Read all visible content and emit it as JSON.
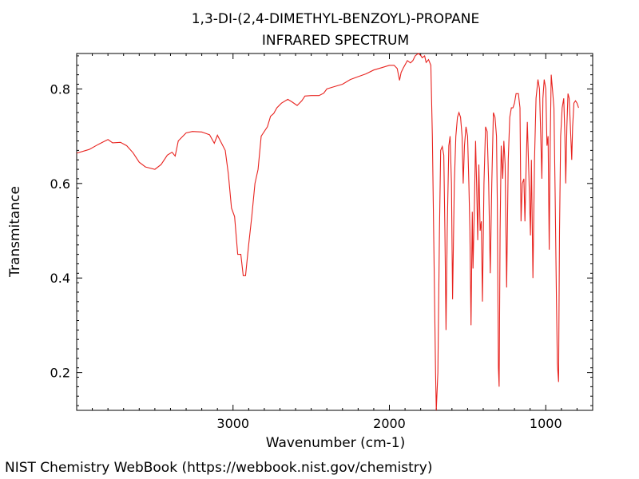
{
  "chart_data": {
    "type": "line",
    "title": "1,3-DI-(2,4-DIMETHYL-BENZOYL)-PROPANE",
    "subtitle": "INFRARED SPECTRUM",
    "xlabel": "Wavenumber (cm-1)",
    "ylabel": "Transmitance",
    "xlim": [
      4000,
      700
    ],
    "ylim": [
      0.12,
      0.875
    ],
    "x_reversed": true,
    "grid": false,
    "legend": "none",
    "x_ticks": [
      3000,
      2000,
      1000
    ],
    "y_ticks": [
      0.2,
      0.4,
      0.6,
      0.8
    ],
    "line_color": "#e8231f",
    "series": [
      {
        "points": [
          [
            4000,
            0.664
          ],
          [
            3920,
            0.672
          ],
          [
            3860,
            0.683
          ],
          [
            3800,
            0.693
          ],
          [
            3770,
            0.686
          ],
          [
            3720,
            0.687
          ],
          [
            3680,
            0.68
          ],
          [
            3640,
            0.665
          ],
          [
            3600,
            0.645
          ],
          [
            3560,
            0.635
          ],
          [
            3500,
            0.63
          ],
          [
            3460,
            0.64
          ],
          [
            3420,
            0.66
          ],
          [
            3390,
            0.666
          ],
          [
            3370,
            0.658
          ],
          [
            3350,
            0.69
          ],
          [
            3300,
            0.707
          ],
          [
            3260,
            0.71
          ],
          [
            3200,
            0.709
          ],
          [
            3150,
            0.703
          ],
          [
            3120,
            0.685
          ],
          [
            3100,
            0.702
          ],
          [
            3075,
            0.686
          ],
          [
            3050,
            0.67
          ],
          [
            3030,
            0.62
          ],
          [
            3010,
            0.548
          ],
          [
            2990,
            0.53
          ],
          [
            2970,
            0.45
          ],
          [
            2950,
            0.45
          ],
          [
            2935,
            0.405
          ],
          [
            2920,
            0.405
          ],
          [
            2900,
            0.47
          ],
          [
            2880,
            0.53
          ],
          [
            2860,
            0.6
          ],
          [
            2840,
            0.63
          ],
          [
            2820,
            0.7
          ],
          [
            2780,
            0.72
          ],
          [
            2760,
            0.742
          ],
          [
            2740,
            0.748
          ],
          [
            2720,
            0.76
          ],
          [
            2690,
            0.77
          ],
          [
            2650,
            0.778
          ],
          [
            2620,
            0.772
          ],
          [
            2590,
            0.765
          ],
          [
            2560,
            0.775
          ],
          [
            2540,
            0.785
          ],
          [
            2500,
            0.786
          ],
          [
            2450,
            0.786
          ],
          [
            2420,
            0.791
          ],
          [
            2400,
            0.8
          ],
          [
            2350,
            0.805
          ],
          [
            2300,
            0.81
          ],
          [
            2250,
            0.82
          ],
          [
            2200,
            0.826
          ],
          [
            2150,
            0.832
          ],
          [
            2100,
            0.84
          ],
          [
            2050,
            0.845
          ],
          [
            2000,
            0.85
          ],
          [
            1970,
            0.85
          ],
          [
            1950,
            0.843
          ],
          [
            1935,
            0.818
          ],
          [
            1925,
            0.835
          ],
          [
            1910,
            0.845
          ],
          [
            1885,
            0.86
          ],
          [
            1865,
            0.855
          ],
          [
            1850,
            0.86
          ],
          [
            1835,
            0.87
          ],
          [
            1815,
            0.875
          ],
          [
            1800,
            0.871
          ],
          [
            1790,
            0.866
          ],
          [
            1775,
            0.87
          ],
          [
            1765,
            0.856
          ],
          [
            1750,
            0.862
          ],
          [
            1735,
            0.85
          ],
          [
            1725,
            0.7
          ],
          [
            1715,
            0.45
          ],
          [
            1705,
            0.2
          ],
          [
            1700,
            0.1
          ],
          [
            1690,
            0.2
          ],
          [
            1680,
            0.5
          ],
          [
            1672,
            0.67
          ],
          [
            1662,
            0.678
          ],
          [
            1652,
            0.66
          ],
          [
            1645,
            0.5
          ],
          [
            1638,
            0.29
          ],
          [
            1630,
            0.5
          ],
          [
            1620,
            0.68
          ],
          [
            1612,
            0.7
          ],
          [
            1603,
            0.6
          ],
          [
            1596,
            0.355
          ],
          [
            1585,
            0.6
          ],
          [
            1575,
            0.7
          ],
          [
            1565,
            0.74
          ],
          [
            1555,
            0.75
          ],
          [
            1545,
            0.74
          ],
          [
            1535,
            0.7
          ],
          [
            1528,
            0.6
          ],
          [
            1520,
            0.68
          ],
          [
            1510,
            0.72
          ],
          [
            1500,
            0.7
          ],
          [
            1492,
            0.6
          ],
          [
            1485,
            0.5
          ],
          [
            1478,
            0.3
          ],
          [
            1470,
            0.54
          ],
          [
            1465,
            0.42
          ],
          [
            1456,
            0.56
          ],
          [
            1449,
            0.69
          ],
          [
            1442,
            0.6
          ],
          [
            1435,
            0.48
          ],
          [
            1428,
            0.64
          ],
          [
            1420,
            0.5
          ],
          [
            1412,
            0.52
          ],
          [
            1405,
            0.35
          ],
          [
            1395,
            0.6
          ],
          [
            1385,
            0.72
          ],
          [
            1375,
            0.71
          ],
          [
            1365,
            0.6
          ],
          [
            1355,
            0.41
          ],
          [
            1345,
            0.6
          ],
          [
            1335,
            0.75
          ],
          [
            1325,
            0.74
          ],
          [
            1315,
            0.7
          ],
          [
            1310,
            0.56
          ],
          [
            1303,
            0.21
          ],
          [
            1298,
            0.17
          ],
          [
            1292,
            0.5
          ],
          [
            1285,
            0.68
          ],
          [
            1275,
            0.61
          ],
          [
            1268,
            0.69
          ],
          [
            1260,
            0.64
          ],
          [
            1250,
            0.38
          ],
          [
            1240,
            0.65
          ],
          [
            1230,
            0.74
          ],
          [
            1220,
            0.76
          ],
          [
            1210,
            0.76
          ],
          [
            1200,
            0.77
          ],
          [
            1190,
            0.79
          ],
          [
            1175,
            0.79
          ],
          [
            1165,
            0.76
          ],
          [
            1158,
            0.52
          ],
          [
            1150,
            0.6
          ],
          [
            1140,
            0.61
          ],
          [
            1133,
            0.52
          ],
          [
            1126,
            0.63
          ],
          [
            1118,
            0.73
          ],
          [
            1108,
            0.62
          ],
          [
            1098,
            0.49
          ],
          [
            1092,
            0.65
          ],
          [
            1082,
            0.4
          ],
          [
            1072,
            0.65
          ],
          [
            1062,
            0.78
          ],
          [
            1050,
            0.82
          ],
          [
            1040,
            0.8
          ],
          [
            1032,
            0.7
          ],
          [
            1025,
            0.61
          ],
          [
            1018,
            0.78
          ],
          [
            1010,
            0.82
          ],
          [
            1000,
            0.8
          ],
          [
            992,
            0.68
          ],
          [
            985,
            0.7
          ],
          [
            978,
            0.46
          ],
          [
            972,
            0.68
          ],
          [
            965,
            0.83
          ],
          [
            955,
            0.79
          ],
          [
            948,
            0.76
          ],
          [
            940,
            0.58
          ],
          [
            932,
            0.36
          ],
          [
            926,
            0.22
          ],
          [
            922,
            0.2
          ],
          [
            918,
            0.18
          ],
          [
            912,
            0.5
          ],
          [
            905,
            0.7
          ],
          [
            895,
            0.76
          ],
          [
            885,
            0.78
          ],
          [
            878,
            0.7
          ],
          [
            872,
            0.6
          ],
          [
            865,
            0.72
          ],
          [
            858,
            0.79
          ],
          [
            850,
            0.78
          ],
          [
            840,
            0.7
          ],
          [
            834,
            0.65
          ],
          [
            828,
            0.72
          ],
          [
            820,
            0.77
          ],
          [
            810,
            0.775
          ],
          [
            800,
            0.77
          ],
          [
            790,
            0.76
          ]
        ]
      }
    ]
  },
  "footer": {
    "credit": "NIST Chemistry WebBook (https://webbook.nist.gov/chemistry)"
  }
}
